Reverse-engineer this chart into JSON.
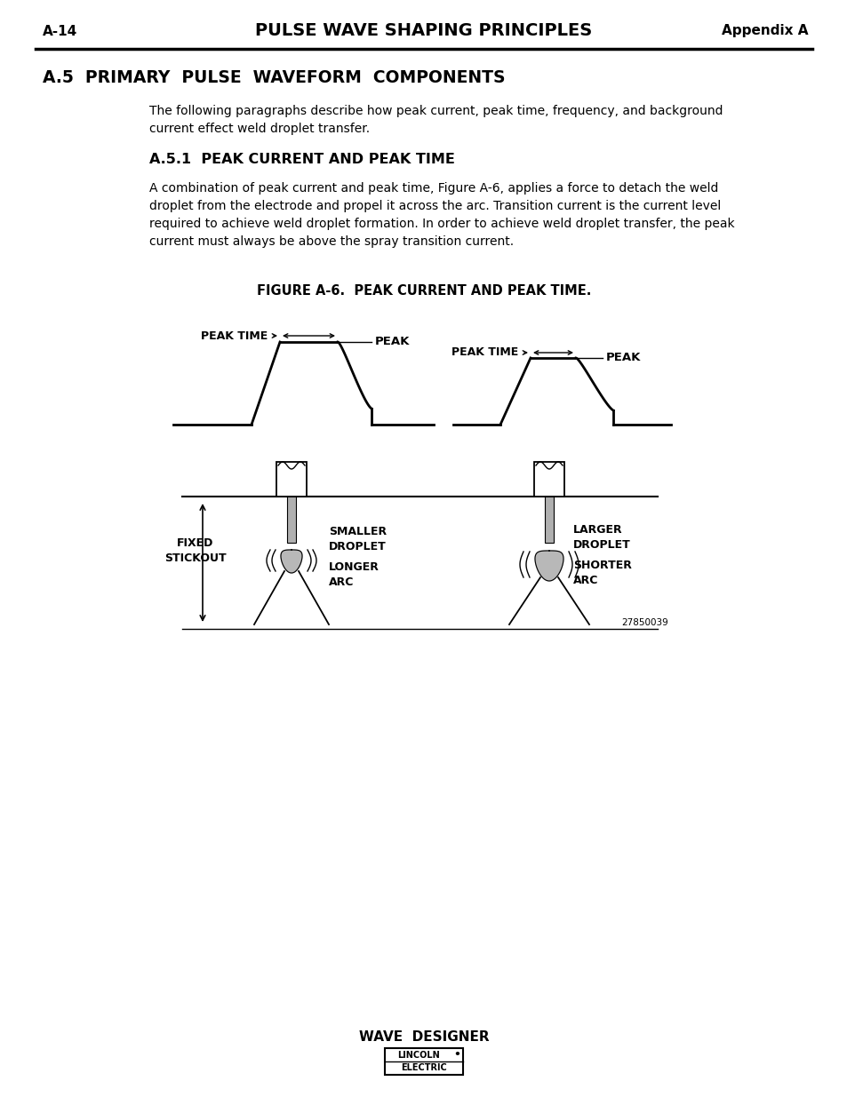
{
  "page_header_left": "A-14",
  "page_header_center": "PULSE WAVE SHAPING PRINCIPLES",
  "page_header_right": "Appendix A",
  "section_title": "A.5  PRIMARY  PULSE  WAVEFORM  COMPONENTS",
  "body_text1": "The following paragraphs describe how peak current, peak time, frequency, and background\ncurrent effect weld droplet transfer.",
  "subsection_title": "A.5.1  PEAK CURRENT AND PEAK TIME",
  "body_text2": "A combination of peak current and peak time, Figure A-6, applies a force to detach the weld\ndroplet from the electrode and propel it across the arc. Transition current is the current level\nrequired to achieve weld droplet formation. In order to achieve weld droplet transfer, the peak\ncurrent must always be above the spray transition current.",
  "figure_caption": "FIGURE A-6.  PEAK CURRENT AND PEAK TIME.",
  "footer_text": "WAVE  DESIGNER",
  "part_number": "27850039",
  "bg_color": "#ffffff",
  "text_color": "#000000"
}
